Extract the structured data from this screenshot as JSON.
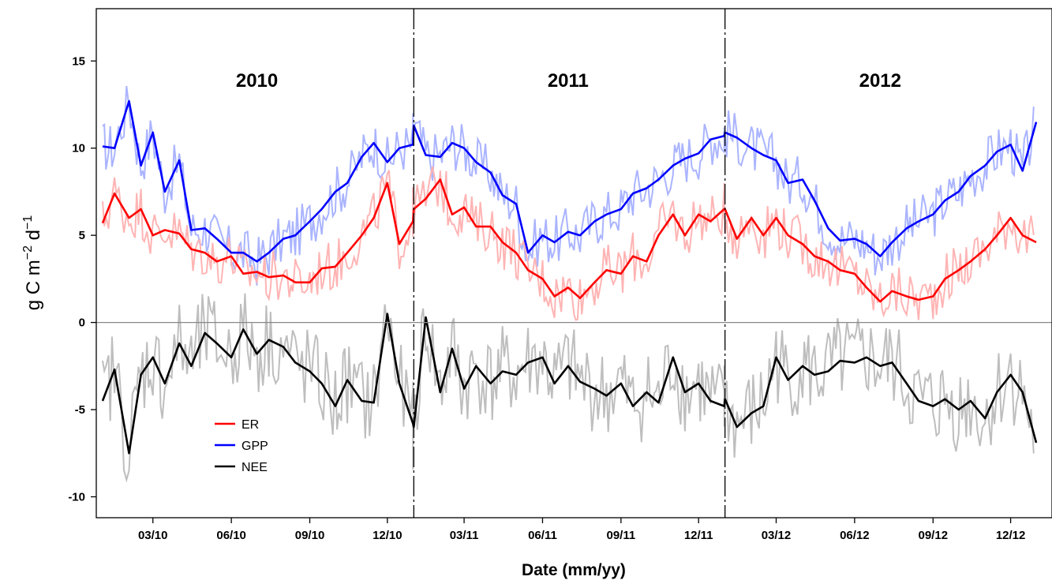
{
  "chart_data": {
    "type": "line",
    "title": "",
    "xlabel": "Date (mm/yy)",
    "ylabel_parts": [
      "g C m",
      "−2",
      " d",
      "−1"
    ],
    "ylim": [
      -11.2,
      18
    ],
    "yticks": [
      -10,
      -5,
      0,
      5,
      10,
      15
    ],
    "ytick_labels": [
      "-10",
      "-5",
      "0",
      "5",
      "10",
      "15"
    ],
    "x_range": [
      "2010-01-01",
      "2012-12-31"
    ],
    "xticks": [
      {
        "date": "2010-03-01",
        "label": "03/10"
      },
      {
        "date": "2010-06-01",
        "label": "06/10"
      },
      {
        "date": "2010-09-01",
        "label": "09/10"
      },
      {
        "date": "2010-12-01",
        "label": "12/10"
      },
      {
        "date": "2011-03-01",
        "label": "03/11"
      },
      {
        "date": "2011-06-01",
        "label": "06/11"
      },
      {
        "date": "2011-09-01",
        "label": "09/11"
      },
      {
        "date": "2011-12-01",
        "label": "12/11"
      },
      {
        "date": "2012-03-01",
        "label": "03/12"
      },
      {
        "date": "2012-06-01",
        "label": "06/12"
      },
      {
        "date": "2012-09-01",
        "label": "09/12"
      },
      {
        "date": "2012-12-01",
        "label": "12/12"
      }
    ],
    "year_dividers": [
      "2011-01-01",
      "2012-01-01"
    ],
    "year_labels": [
      {
        "text": "2010",
        "date": "2010-07-01"
      },
      {
        "text": "2011",
        "date": "2011-07-01"
      },
      {
        "text": "2012",
        "date": "2012-07-01"
      }
    ],
    "zero_line": 0,
    "legend": {
      "placement": "lower-left",
      "entries": [
        {
          "label": "ER",
          "color": "#ff0000"
        },
        {
          "label": "GPP",
          "color": "#0000ff"
        },
        {
          "label": "NEE",
          "color": "#000000"
        }
      ]
    },
    "series": [
      {
        "name": "GPP",
        "color": "#0000ff",
        "raw_color": "#aab4ff",
        "smoothed": [
          [
            "2010-01-01",
            10.1
          ],
          [
            "2010-01-15",
            10.0
          ],
          [
            "2010-02-01",
            12.7
          ],
          [
            "2010-02-15",
            9.0
          ],
          [
            "2010-03-01",
            10.9
          ],
          [
            "2010-03-15",
            7.5
          ],
          [
            "2010-04-01",
            9.3
          ],
          [
            "2010-04-15",
            5.3
          ],
          [
            "2010-05-01",
            5.4
          ],
          [
            "2010-05-15",
            4.8
          ],
          [
            "2010-06-01",
            4.0
          ],
          [
            "2010-06-15",
            4.0
          ],
          [
            "2010-07-01",
            3.5
          ],
          [
            "2010-07-15",
            4.0
          ],
          [
            "2010-08-01",
            4.8
          ],
          [
            "2010-08-15",
            5.0
          ],
          [
            "2010-09-01",
            5.8
          ],
          [
            "2010-09-15",
            6.5
          ],
          [
            "2010-10-01",
            7.5
          ],
          [
            "2010-10-15",
            8.0
          ],
          [
            "2010-11-01",
            9.5
          ],
          [
            "2010-11-15",
            10.3
          ],
          [
            "2010-12-01",
            9.2
          ],
          [
            "2010-12-15",
            10.0
          ],
          [
            "2010-12-31",
            10.2
          ],
          [
            "2011-01-01",
            11.3
          ],
          [
            "2011-01-15",
            9.6
          ],
          [
            "2011-02-01",
            9.5
          ],
          [
            "2011-02-15",
            10.3
          ],
          [
            "2011-03-01",
            10.0
          ],
          [
            "2011-03-15",
            9.2
          ],
          [
            "2011-04-01",
            8.6
          ],
          [
            "2011-04-15",
            7.3
          ],
          [
            "2011-05-01",
            6.8
          ],
          [
            "2011-05-15",
            4.0
          ],
          [
            "2011-06-01",
            5.0
          ],
          [
            "2011-06-15",
            4.6
          ],
          [
            "2011-07-01",
            5.2
          ],
          [
            "2011-07-15",
            5.0
          ],
          [
            "2011-08-01",
            5.8
          ],
          [
            "2011-08-15",
            6.2
          ],
          [
            "2011-09-01",
            6.5
          ],
          [
            "2011-09-15",
            7.4
          ],
          [
            "2011-10-01",
            7.7
          ],
          [
            "2011-10-15",
            8.2
          ],
          [
            "2011-11-01",
            9.0
          ],
          [
            "2011-11-15",
            9.4
          ],
          [
            "2011-12-01",
            9.7
          ],
          [
            "2011-12-15",
            10.5
          ],
          [
            "2011-12-31",
            10.7
          ],
          [
            "2012-01-01",
            10.9
          ],
          [
            "2012-01-15",
            10.6
          ],
          [
            "2012-02-01",
            10.0
          ],
          [
            "2012-02-15",
            9.6
          ],
          [
            "2012-03-01",
            9.3
          ],
          [
            "2012-03-15",
            8.0
          ],
          [
            "2012-04-01",
            8.2
          ],
          [
            "2012-04-15",
            7.0
          ],
          [
            "2012-05-01",
            5.4
          ],
          [
            "2012-05-15",
            4.7
          ],
          [
            "2012-06-01",
            4.8
          ],
          [
            "2012-06-15",
            4.5
          ],
          [
            "2012-07-01",
            3.8
          ],
          [
            "2012-07-15",
            4.6
          ],
          [
            "2012-08-01",
            5.4
          ],
          [
            "2012-08-15",
            5.8
          ],
          [
            "2012-09-01",
            6.2
          ],
          [
            "2012-09-15",
            7.0
          ],
          [
            "2012-10-01",
            7.5
          ],
          [
            "2012-10-15",
            8.4
          ],
          [
            "2012-11-01",
            9.0
          ],
          [
            "2012-11-15",
            9.8
          ],
          [
            "2012-12-01",
            10.2
          ],
          [
            "2012-12-15",
            8.7
          ],
          [
            "2012-12-31",
            11.5
          ]
        ]
      },
      {
        "name": "ER",
        "color": "#ff0000",
        "raw_color": "#ffb4b4",
        "smoothed": [
          [
            "2010-01-01",
            5.7
          ],
          [
            "2010-01-15",
            7.4
          ],
          [
            "2010-02-01",
            6.0
          ],
          [
            "2010-02-15",
            6.5
          ],
          [
            "2010-03-01",
            5.0
          ],
          [
            "2010-03-15",
            5.3
          ],
          [
            "2010-04-01",
            5.1
          ],
          [
            "2010-04-15",
            4.2
          ],
          [
            "2010-05-01",
            4.0
          ],
          [
            "2010-05-15",
            3.5
          ],
          [
            "2010-06-01",
            3.8
          ],
          [
            "2010-06-15",
            2.8
          ],
          [
            "2010-07-01",
            2.9
          ],
          [
            "2010-07-15",
            2.6
          ],
          [
            "2010-08-01",
            2.7
          ],
          [
            "2010-08-15",
            2.3
          ],
          [
            "2010-09-01",
            2.3
          ],
          [
            "2010-09-15",
            3.1
          ],
          [
            "2010-10-01",
            3.2
          ],
          [
            "2010-10-15",
            4.0
          ],
          [
            "2010-11-01",
            5.0
          ],
          [
            "2010-11-15",
            6.0
          ],
          [
            "2010-12-01",
            8.0
          ],
          [
            "2010-12-15",
            4.5
          ],
          [
            "2010-12-31",
            5.8
          ],
          [
            "2011-01-01",
            6.5
          ],
          [
            "2011-01-15",
            7.1
          ],
          [
            "2011-02-01",
            8.2
          ],
          [
            "2011-02-15",
            6.2
          ],
          [
            "2011-03-01",
            6.6
          ],
          [
            "2011-03-15",
            5.5
          ],
          [
            "2011-04-01",
            5.5
          ],
          [
            "2011-04-15",
            4.6
          ],
          [
            "2011-05-01",
            4.0
          ],
          [
            "2011-05-15",
            3.0
          ],
          [
            "2011-06-01",
            2.5
          ],
          [
            "2011-06-15",
            1.5
          ],
          [
            "2011-07-01",
            2.0
          ],
          [
            "2011-07-15",
            1.4
          ],
          [
            "2011-08-01",
            2.3
          ],
          [
            "2011-08-15",
            3.0
          ],
          [
            "2011-09-01",
            2.8
          ],
          [
            "2011-09-15",
            3.8
          ],
          [
            "2011-10-01",
            3.5
          ],
          [
            "2011-10-15",
            5.0
          ],
          [
            "2011-11-01",
            6.2
          ],
          [
            "2011-11-15",
            5.0
          ],
          [
            "2011-12-01",
            6.2
          ],
          [
            "2011-12-15",
            5.8
          ],
          [
            "2011-12-31",
            6.5
          ],
          [
            "2012-01-01",
            6.5
          ],
          [
            "2012-01-15",
            4.8
          ],
          [
            "2012-02-01",
            6.0
          ],
          [
            "2012-02-15",
            5.0
          ],
          [
            "2012-03-01",
            6.0
          ],
          [
            "2012-03-15",
            5.0
          ],
          [
            "2012-04-01",
            4.5
          ],
          [
            "2012-04-15",
            3.8
          ],
          [
            "2012-05-01",
            3.5
          ],
          [
            "2012-05-15",
            3.0
          ],
          [
            "2012-06-01",
            2.8
          ],
          [
            "2012-06-15",
            2.0
          ],
          [
            "2012-07-01",
            1.2
          ],
          [
            "2012-07-15",
            1.8
          ],
          [
            "2012-08-01",
            1.5
          ],
          [
            "2012-08-15",
            1.3
          ],
          [
            "2012-09-01",
            1.5
          ],
          [
            "2012-09-15",
            2.5
          ],
          [
            "2012-10-01",
            3.0
          ],
          [
            "2012-10-15",
            3.5
          ],
          [
            "2012-11-01",
            4.2
          ],
          [
            "2012-11-15",
            5.0
          ],
          [
            "2012-12-01",
            6.0
          ],
          [
            "2012-12-15",
            5.0
          ],
          [
            "2012-12-31",
            4.6
          ]
        ]
      },
      {
        "name": "NEE",
        "color": "#000000",
        "raw_color": "#bebebe",
        "smoothed": [
          [
            "2010-01-01",
            -4.5
          ],
          [
            "2010-01-15",
            -2.7
          ],
          [
            "2010-02-01",
            -7.5
          ],
          [
            "2010-02-15",
            -3.0
          ],
          [
            "2010-03-01",
            -2.0
          ],
          [
            "2010-03-15",
            -3.5
          ],
          [
            "2010-04-01",
            -1.2
          ],
          [
            "2010-04-15",
            -2.5
          ],
          [
            "2010-05-01",
            -0.6
          ],
          [
            "2010-05-15",
            -1.2
          ],
          [
            "2010-06-01",
            -2.0
          ],
          [
            "2010-06-15",
            -0.4
          ],
          [
            "2010-07-01",
            -1.8
          ],
          [
            "2010-07-15",
            -1.0
          ],
          [
            "2010-08-01",
            -1.4
          ],
          [
            "2010-08-15",
            -2.3
          ],
          [
            "2010-09-01",
            -2.8
          ],
          [
            "2010-09-15",
            -3.5
          ],
          [
            "2010-10-01",
            -4.8
          ],
          [
            "2010-10-15",
            -3.3
          ],
          [
            "2010-11-01",
            -4.5
          ],
          [
            "2010-11-15",
            -4.6
          ],
          [
            "2010-12-01",
            0.5
          ],
          [
            "2010-12-15",
            -3.5
          ],
          [
            "2010-12-31",
            -5.8
          ],
          [
            "2011-01-01",
            -6.0
          ],
          [
            "2011-01-15",
            0.3
          ],
          [
            "2011-02-01",
            -4.0
          ],
          [
            "2011-02-15",
            -1.5
          ],
          [
            "2011-03-01",
            -3.8
          ],
          [
            "2011-03-15",
            -2.5
          ],
          [
            "2011-04-01",
            -3.5
          ],
          [
            "2011-04-15",
            -2.8
          ],
          [
            "2011-05-01",
            -3.0
          ],
          [
            "2011-05-15",
            -2.3
          ],
          [
            "2011-06-01",
            -2.0
          ],
          [
            "2011-06-15",
            -3.5
          ],
          [
            "2011-07-01",
            -2.5
          ],
          [
            "2011-07-15",
            -3.4
          ],
          [
            "2011-08-01",
            -3.8
          ],
          [
            "2011-08-15",
            -4.2
          ],
          [
            "2011-09-01",
            -3.5
          ],
          [
            "2011-09-15",
            -4.8
          ],
          [
            "2011-10-01",
            -4.0
          ],
          [
            "2011-10-15",
            -4.6
          ],
          [
            "2011-11-01",
            -2.0
          ],
          [
            "2011-11-15",
            -4.0
          ],
          [
            "2011-12-01",
            -3.5
          ],
          [
            "2011-12-15",
            -4.5
          ],
          [
            "2011-12-31",
            -4.8
          ],
          [
            "2012-01-01",
            -4.4
          ],
          [
            "2012-01-15",
            -6.0
          ],
          [
            "2012-02-01",
            -5.2
          ],
          [
            "2012-02-15",
            -4.8
          ],
          [
            "2012-03-01",
            -2.0
          ],
          [
            "2012-03-15",
            -3.3
          ],
          [
            "2012-04-01",
            -2.5
          ],
          [
            "2012-04-15",
            -3.0
          ],
          [
            "2012-05-01",
            -2.8
          ],
          [
            "2012-05-15",
            -2.2
          ],
          [
            "2012-06-01",
            -2.3
          ],
          [
            "2012-06-15",
            -2.0
          ],
          [
            "2012-07-01",
            -2.5
          ],
          [
            "2012-07-15",
            -2.3
          ],
          [
            "2012-08-01",
            -3.5
          ],
          [
            "2012-08-15",
            -4.5
          ],
          [
            "2012-09-01",
            -4.8
          ],
          [
            "2012-09-15",
            -4.4
          ],
          [
            "2012-10-01",
            -5.0
          ],
          [
            "2012-10-15",
            -4.5
          ],
          [
            "2012-11-01",
            -5.5
          ],
          [
            "2012-11-15",
            -4.0
          ],
          [
            "2012-12-01",
            -3.0
          ],
          [
            "2012-12-15",
            -4.0
          ],
          [
            "2012-12-31",
            -6.9
          ]
        ]
      }
    ]
  }
}
